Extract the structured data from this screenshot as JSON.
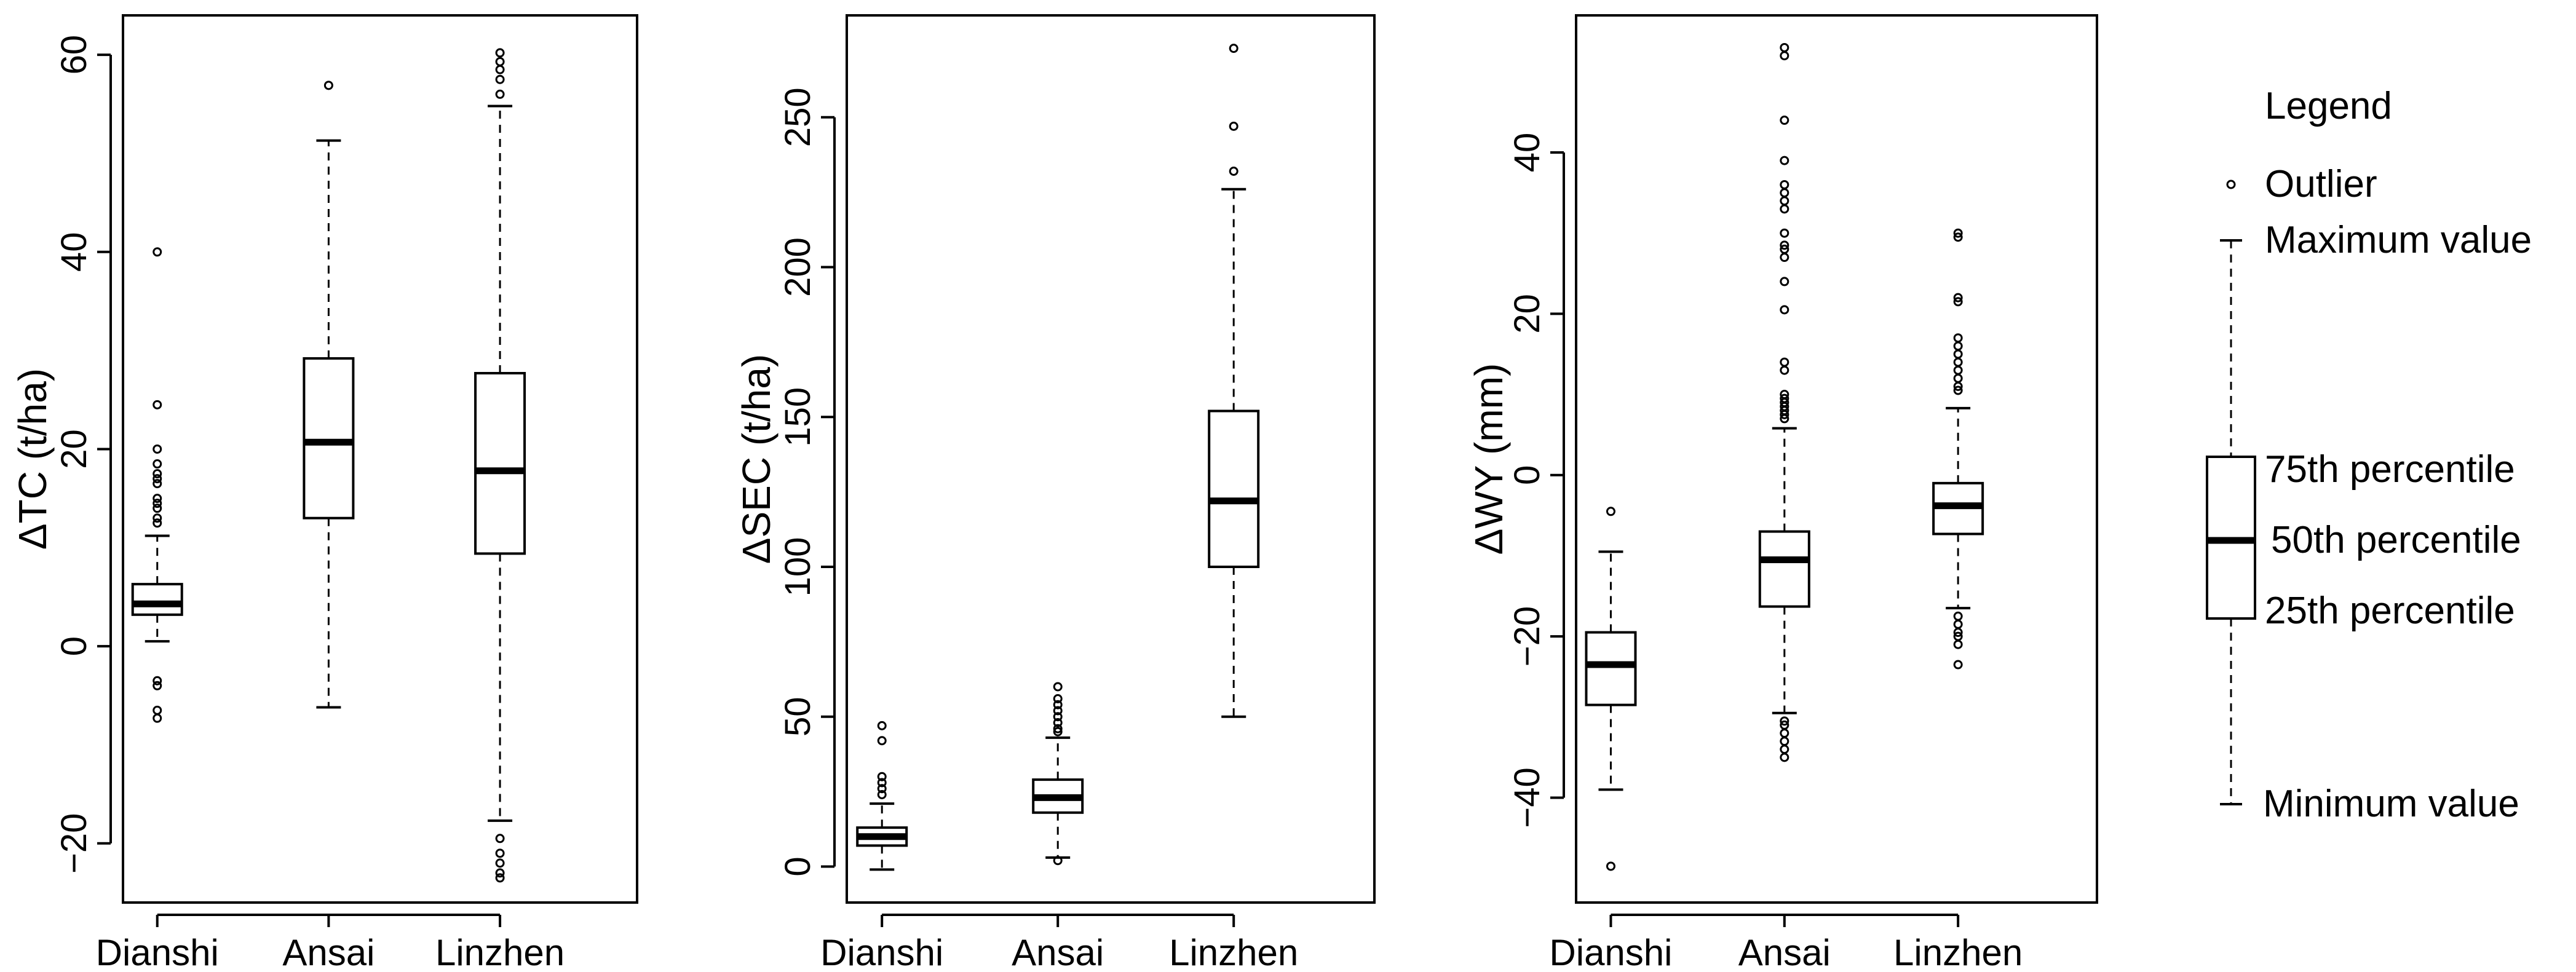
{
  "chart_data": [
    {
      "type": "boxplot",
      "ylabel": "ΔTC (t/ha)",
      "categories": [
        "Dianshi",
        "Ansai",
        "Linzhen"
      ],
      "ylim": [
        -26,
        64
      ],
      "yticks": [
        -20,
        0,
        20,
        40,
        60
      ],
      "boxes": [
        {
          "name": "Dianshi",
          "min": 0.5,
          "q1": 3.2,
          "median": 4.3,
          "q3": 6.3,
          "max": 11.2,
          "outliers": [
            40,
            24.5,
            20,
            18.5,
            17.5,
            17,
            16.5,
            15,
            14.5,
            14,
            13,
            12.5,
            -3.5,
            -4,
            -6.5,
            -7.3
          ]
        },
        {
          "name": "Ansai",
          "min": -6.2,
          "q1": 13,
          "median": 20.7,
          "q3": 29.2,
          "max": 51.3,
          "outliers": [
            56.9
          ]
        },
        {
          "name": "Linzhen",
          "min": -17.7,
          "q1": 9.4,
          "median": 17.8,
          "q3": 27.7,
          "max": 54.8,
          "outliers": [
            60.2,
            59.3,
            58.5,
            57.5,
            56,
            -19.5,
            -21,
            -22,
            -23,
            -23.5
          ]
        }
      ]
    },
    {
      "type": "boxplot",
      "ylabel": "ΔSEC (t/ha)",
      "categories": [
        "Dianshi",
        "Ansai",
        "Linzhen"
      ],
      "ylim": [
        -12,
        284
      ],
      "yticks": [
        0,
        50,
        100,
        150,
        200,
        250
      ],
      "boxes": [
        {
          "name": "Dianshi",
          "min": -1,
          "q1": 7,
          "median": 10,
          "q3": 13,
          "max": 21,
          "outliers": [
            47,
            42,
            30,
            28,
            26,
            24
          ]
        },
        {
          "name": "Ansai",
          "min": 3,
          "q1": 18,
          "median": 23,
          "q3": 29,
          "max": 43,
          "outliers": [
            60,
            56,
            54,
            52,
            50,
            48,
            46,
            45,
            2
          ]
        },
        {
          "name": "Linzhen",
          "min": 50,
          "q1": 100,
          "median": 122,
          "q3": 152,
          "max": 226,
          "outliers": [
            273,
            247,
            232
          ]
        }
      ]
    },
    {
      "type": "boxplot",
      "ylabel": "ΔWY (mm)",
      "categories": [
        "Dianshi",
        "Ansai",
        "Linzhen"
      ],
      "ylim": [
        -53,
        57
      ],
      "yticks": [
        -40,
        -20,
        0,
        20,
        40
      ],
      "boxes": [
        {
          "name": "Dianshi",
          "min": -39,
          "q1": -28.5,
          "median": -23.5,
          "q3": -19.5,
          "max": -9.5,
          "outliers": [
            -4.5,
            -48.5
          ]
        },
        {
          "name": "Ansai",
          "min": -29.5,
          "q1": -16.3,
          "median": -10.5,
          "q3": -7,
          "max": 5.8,
          "outliers": [
            53,
            52,
            44,
            39,
            36,
            35,
            34,
            33,
            30,
            28.5,
            28,
            27,
            24,
            20.5,
            14,
            13,
            10,
            9.5,
            9,
            8.5,
            8,
            7.5,
            7,
            -30.5,
            -31,
            -32,
            -33,
            -34,
            -35
          ]
        },
        {
          "name": "Linzhen",
          "min": -16.5,
          "q1": -7.3,
          "median": -3.8,
          "q3": -1,
          "max": 8.3,
          "outliers": [
            30,
            29.5,
            22,
            21.5,
            17,
            16,
            15,
            14,
            13,
            12,
            11,
            10.5,
            -17.5,
            -18.5,
            -19.5,
            -20,
            -21,
            -23.5
          ]
        }
      ]
    }
  ],
  "legend": {
    "title": "Legend",
    "outlier": "Outlier",
    "max": "Maximum value",
    "q3": "75th percentile",
    "median": "50th percentile",
    "q1": "25th percentile",
    "min": "Minimum value"
  }
}
